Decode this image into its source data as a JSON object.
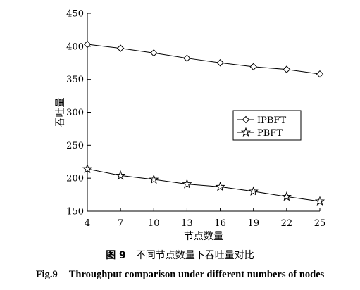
{
  "chart_data": {
    "type": "line",
    "xlabel": "节点数量",
    "ylabel": "吞吐量",
    "x": [
      4,
      7,
      10,
      13,
      16,
      19,
      22,
      25
    ],
    "xlim": [
      4,
      25
    ],
    "ylim": [
      150,
      450
    ],
    "yticks": [
      150,
      200,
      250,
      300,
      350,
      400,
      450
    ],
    "legend_position": "right-middle",
    "grid": false,
    "series": [
      {
        "name": "IPBFT",
        "marker": "diamond",
        "values": [
          403,
          397,
          390,
          382,
          375,
          369,
          365,
          358
        ]
      },
      {
        "name": "PBFT",
        "marker": "star",
        "values": [
          214,
          204,
          198,
          191,
          187,
          180,
          172,
          165
        ]
      }
    ]
  },
  "caption": {
    "cn_label": "图 9",
    "cn_text": "不同节点数量下吞吐量对比",
    "en_label": "Fig.9",
    "en_text": "Throughput comparison under different numbers of nodes"
  }
}
